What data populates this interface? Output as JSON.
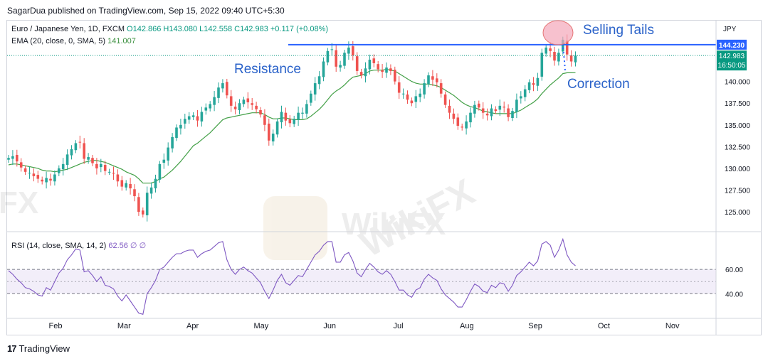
{
  "header": {
    "published_by": "SagarDua published on TradingView.com, Sep 15, 2022 09:40 UTC+5:30"
  },
  "legend": {
    "symbol": "Euro / Japanese Yen, 1D, FXCM",
    "ohlc": "O142.866 H143.080 L142.558 C142.983 +0.117 (+0.08%)",
    "ema_label": "EMA (20, close, 0, SMA, 5)",
    "ema_value": "141.007",
    "rsi_label": "RSI (14, close, SMA, 14, 2)",
    "rsi_value": "62.56 ∅ ∅"
  },
  "annotations": {
    "resistance": "Resistance",
    "selling_tails": "Selling Tails",
    "correction": "Correction"
  },
  "footer": {
    "brand": "TradingView",
    "logo_text": "17"
  },
  "watermark": "WikiFX",
  "chart_data": {
    "type": "candlestick",
    "title": "Euro / Japanese Yen, 1D, FXCM",
    "currency": "JPY",
    "ylim": [
      122.8,
      147.0
    ],
    "y_ticks": [
      {
        "value": 140.0,
        "label": "140.000"
      },
      {
        "value": 137.5,
        "label": "137.500"
      },
      {
        "value": 135.0,
        "label": "135.000"
      },
      {
        "value": 132.5,
        "label": "132.500"
      },
      {
        "value": 130.0,
        "label": "130.000"
      },
      {
        "value": 127.5,
        "label": "127.500"
      },
      {
        "value": 125.0,
        "label": "125.000"
      }
    ],
    "x_ticks": [
      {
        "pos": 0.0,
        "label": "Feb"
      },
      {
        "pos": 1.0,
        "label": "Mar"
      },
      {
        "pos": 2.0,
        "label": "Apr"
      },
      {
        "pos": 3.0,
        "label": "May"
      },
      {
        "pos": 4.0,
        "label": "Jun"
      },
      {
        "pos": 5.0,
        "label": "Jul"
      },
      {
        "pos": 6.0,
        "label": "Aug"
      },
      {
        "pos": 7.0,
        "label": "Sep"
      },
      {
        "pos": 8.0,
        "label": "Oct"
      },
      {
        "pos": 9.0,
        "label": "Nov"
      }
    ],
    "price_labels": [
      {
        "label": "144.230",
        "value": 144.23,
        "color": "#2962ff"
      },
      {
        "label": "142.983",
        "value": 142.983,
        "color": "#089981"
      }
    ],
    "countdown": "16:50:05",
    "resistance_level": 144.23,
    "closes": [
      131.2,
      131.4,
      130.8,
      130.1,
      129.6,
      129.5,
      129.1,
      128.8,
      128.5,
      128.9,
      128.6,
      129.3,
      130.0,
      130.5,
      131.6,
      132.2,
      132.9,
      133.0,
      131.1,
      131.3,
      130.6,
      130.0,
      130.5,
      129.7,
      129.6,
      129.4,
      128.5,
      127.9,
      128.3,
      127.7,
      126.8,
      125.0,
      124.7,
      127.2,
      127.8,
      128.8,
      130.5,
      131.0,
      132.4,
      133.6,
      134.7,
      135.0,
      135.7,
      136.0,
      136.1,
      135.5,
      136.5,
      137.0,
      137.4,
      138.2,
      139.3,
      139.8,
      138.4,
      137.2,
      136.8,
      137.5,
      137.9,
      137.6,
      137.3,
      136.8,
      136.2,
      135.0,
      133.2,
      134.0,
      135.4,
      136.5,
      135.5,
      135.2,
      135.7,
      136.4,
      136.4,
      137.4,
      138.6,
      139.8,
      140.6,
      142.3,
      143.5,
      143.7,
      141.7,
      141.9,
      143.3,
      143.9,
      143.0,
      141.2,
      140.7,
      141.5,
      142.5,
      142.1,
      141.4,
      141.1,
      141.6,
      141.2,
      140.0,
      138.7,
      138.6,
      137.9,
      137.5,
      138.3,
      138.6,
      139.8,
      140.7,
      140.2,
      139.9,
      138.6,
      137.3,
      136.4,
      135.7,
      134.9,
      134.7,
      135.4,
      136.4,
      137.3,
      137.0,
      136.4,
      136.1,
      136.9,
      136.6,
      137.2,
      137.0,
      135.9,
      136.6,
      137.9,
      138.3,
      139.1,
      139.9,
      139.6,
      140.4,
      143.3,
      143.9,
      143.5,
      142.4,
      143.3,
      144.8,
      143.1,
      142.3,
      142.983
    ],
    "ema": [
      130.4,
      130.5,
      130.5,
      130.4,
      130.3,
      130.2,
      130.1,
      130.0,
      129.8,
      129.7,
      129.7,
      129.6,
      129.7,
      129.8,
      129.9,
      130.1,
      130.3,
      130.5,
      130.7,
      130.8,
      130.9,
      130.9,
      130.8,
      130.7,
      130.5,
      130.3,
      130.1,
      129.9,
      129.6,
      129.4,
      129.2,
      128.8,
      128.3,
      128.3,
      128.3,
      128.5,
      128.8,
      129.0,
      129.4,
      129.8,
      130.3,
      130.8,
      131.4,
      132.0,
      132.6,
      132.9,
      133.3,
      133.7,
      134.1,
      134.6,
      135.1,
      135.6,
      135.8,
      135.9,
      136.0,
      136.1,
      136.2,
      136.3,
      136.4,
      136.4,
      136.4,
      136.2,
      135.9,
      135.7,
      135.7,
      135.8,
      135.8,
      135.7,
      135.6,
      135.6,
      135.6,
      135.7,
      136.0,
      136.4,
      136.8,
      137.3,
      137.9,
      138.5,
      138.9,
      139.2,
      139.6,
      140.1,
      140.5,
      140.6,
      140.7,
      140.9,
      141.2,
      141.3,
      141.3,
      141.3,
      141.4,
      141.3,
      141.2,
      140.9,
      140.6,
      140.3,
      140.0,
      139.8,
      139.7,
      139.7,
      139.7,
      139.6,
      139.5,
      139.3,
      139.0,
      138.7,
      138.4,
      138.0,
      137.6,
      137.3,
      137.1,
      137.0,
      136.8,
      136.6,
      136.5,
      136.4,
      136.3,
      136.3,
      136.3,
      136.3,
      136.3,
      136.5,
      136.7,
      137.0,
      137.3,
      137.6,
      138.0,
      138.6,
      139.1,
      139.6,
      140.0,
      140.4,
      140.9,
      141.0,
      141.0,
      141.007
    ],
    "rsi": {
      "label": "RSI (14, close, SMA, 14, 2)",
      "ylim": [
        22,
        90
      ],
      "levels": [
        {
          "value": 60,
          "label": "60.00"
        },
        {
          "value": 40,
          "label": "40.00"
        }
      ],
      "band": [
        40,
        60
      ],
      "values": [
        59,
        56,
        52,
        49,
        45,
        44,
        42,
        39,
        38,
        45,
        43,
        50,
        57,
        61,
        68,
        72,
        77,
        76,
        58,
        59,
        55,
        50,
        54,
        47,
        46,
        44,
        38,
        34,
        39,
        34,
        29,
        24,
        23,
        40,
        45,
        51,
        60,
        62,
        66,
        70,
        73,
        73,
        75,
        76,
        76,
        70,
        73,
        75,
        76,
        79,
        82,
        83,
        68,
        60,
        56,
        60,
        62,
        59,
        57,
        53,
        49,
        42,
        36,
        43,
        51,
        56,
        49,
        47,
        51,
        55,
        54,
        60,
        66,
        72,
        75,
        80,
        83,
        83,
        66,
        66,
        72,
        74,
        67,
        57,
        54,
        60,
        65,
        62,
        58,
        56,
        59,
        56,
        50,
        43,
        43,
        39,
        37,
        43,
        45,
        52,
        56,
        53,
        51,
        44,
        39,
        36,
        33,
        29,
        29,
        35,
        42,
        48,
        46,
        42,
        41,
        47,
        45,
        49,
        48,
        42,
        47,
        55,
        58,
        62,
        66,
        63,
        67,
        81,
        83,
        80,
        70,
        76,
        85,
        72,
        66,
        63
      ]
    }
  }
}
